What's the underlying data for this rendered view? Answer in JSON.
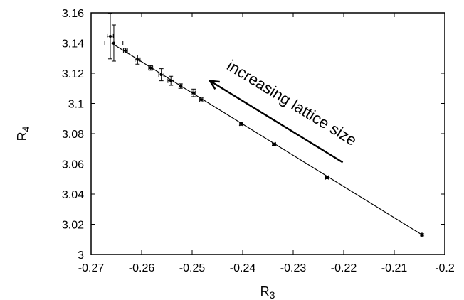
{
  "chart_data": {
    "type": "scatter",
    "title": "",
    "xlabel": "R",
    "xlabel_sub": "3",
    "ylabel": "R",
    "ylabel_sub": "4",
    "xlim": [
      -0.27,
      -0.2
    ],
    "ylim": [
      3.0,
      3.16
    ],
    "x_ticks": [
      -0.27,
      -0.26,
      -0.25,
      -0.24,
      -0.23,
      -0.22,
      -0.21,
      -0.2
    ],
    "x_tick_labels": [
      "-0.27",
      "-0.26",
      "-0.25",
      "-0.24",
      "-0.23",
      "-0.22",
      "-0.21",
      "-0.2"
    ],
    "y_ticks": [
      3.0,
      3.02,
      3.04,
      3.06,
      3.08,
      3.1,
      3.12,
      3.14,
      3.16
    ],
    "y_tick_labels": [
      "3",
      "3.02",
      "3.04",
      "3.06",
      "3.08",
      "3.1",
      "3.12",
      "3.14",
      "3.16"
    ],
    "grid": false,
    "points": [
      {
        "x": -0.2045,
        "y": 3.013,
        "yerr": 0.0007,
        "xerr": 0.0001
      },
      {
        "x": -0.2233,
        "y": 3.051,
        "yerr": 0.0009,
        "xerr": 0.0003
      },
      {
        "x": -0.2338,
        "y": 3.073,
        "yerr": 0.0008,
        "xerr": 0.0003
      },
      {
        "x": -0.2403,
        "y": 3.0865,
        "yerr": 0.001,
        "xerr": 0.0003
      },
      {
        "x": -0.2482,
        "y": 3.1025,
        "yerr": 0.0015,
        "xerr": 0.0003
      },
      {
        "x": -0.2497,
        "y": 3.107,
        "yerr": 0.0025,
        "xerr": 0.0003
      },
      {
        "x": -0.2523,
        "y": 3.1115,
        "yerr": 0.0015,
        "xerr": 0.0003
      },
      {
        "x": -0.2542,
        "y": 3.115,
        "yerr": 0.003,
        "xerr": 0.0006
      },
      {
        "x": -0.2561,
        "y": 3.119,
        "yerr": 0.004,
        "xerr": 0.0005
      },
      {
        "x": -0.2582,
        "y": 3.1235,
        "yerr": 0.0015,
        "xerr": 0.0004
      },
      {
        "x": -0.2608,
        "y": 3.129,
        "yerr": 0.003,
        "xerr": 0.0005
      },
      {
        "x": -0.2632,
        "y": 3.135,
        "yerr": 0.0015,
        "xerr": 0.0004
      },
      {
        "x": -0.2655,
        "y": 3.14,
        "yerr": 0.012,
        "xerr": 0.0018
      },
      {
        "x": -0.2662,
        "y": 3.1445,
        "yerr": 0.015,
        "xerr": 0.0006
      }
    ],
    "fit_line": {
      "x": [
        -0.2045,
        -0.266
      ],
      "y": [
        3.013,
        3.14
      ]
    },
    "annotation": {
      "text": "increasing lattice size",
      "arrow_from": {
        "x": -0.2202,
        "y": 3.061
      },
      "arrow_to": {
        "x": -0.2465,
        "y": 3.115
      }
    }
  }
}
